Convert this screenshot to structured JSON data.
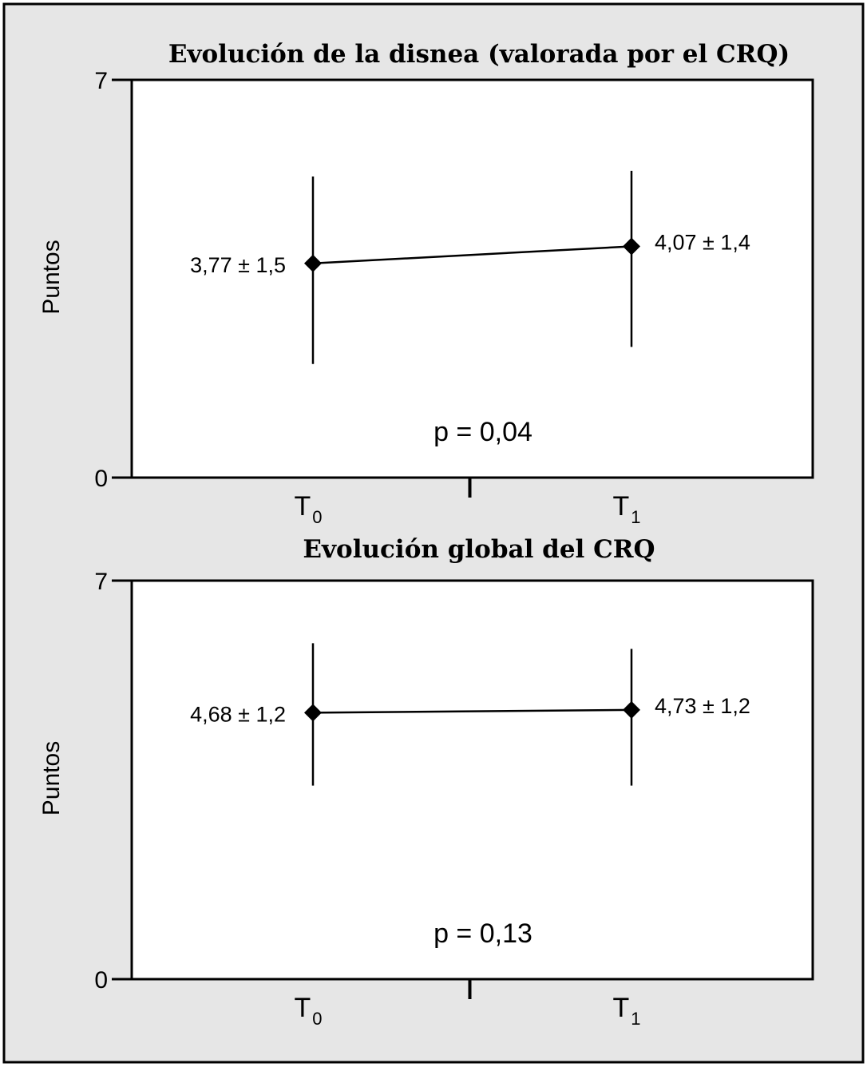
{
  "colors": {
    "page_bg": "#e6e6e6",
    "frame": "#000000",
    "plot_bg": "#ffffff",
    "ink": "#000000"
  },
  "chart_data": [
    {
      "type": "line",
      "title": "Evolución de la disnea (valorada por el CRQ)",
      "ylabel": "Puntos",
      "ylim": [
        0,
        7
      ],
      "yticks": [
        "0",
        "7"
      ],
      "categories": [
        {
          "main": "T",
          "sub": "0"
        },
        {
          "main": "T",
          "sub": "1"
        }
      ],
      "points": [
        {
          "mean": 3.77,
          "sd": 1.5,
          "err_low": 2.0,
          "err_high": 5.3,
          "label": "3,77 ± 1,5"
        },
        {
          "mean": 4.07,
          "sd": 1.4,
          "err_low": 2.3,
          "err_high": 5.4,
          "label": "4,07 ± 1,4"
        }
      ],
      "annotation": "p = 0,04"
    },
    {
      "type": "line",
      "title": "Evolución global del CRQ",
      "ylabel": "Puntos",
      "ylim": [
        0,
        7
      ],
      "yticks": [
        "0",
        "7"
      ],
      "categories": [
        {
          "main": "T",
          "sub": "0"
        },
        {
          "main": "T",
          "sub": "1"
        }
      ],
      "points": [
        {
          "mean": 4.68,
          "sd": 1.2,
          "err_low": 3.4,
          "err_high": 5.9,
          "label": "4,68 ± 1,2"
        },
        {
          "mean": 4.73,
          "sd": 1.2,
          "err_low": 3.4,
          "err_high": 5.8,
          "label": "4,73 ± 1,2"
        }
      ],
      "annotation": "p = 0,13"
    }
  ]
}
